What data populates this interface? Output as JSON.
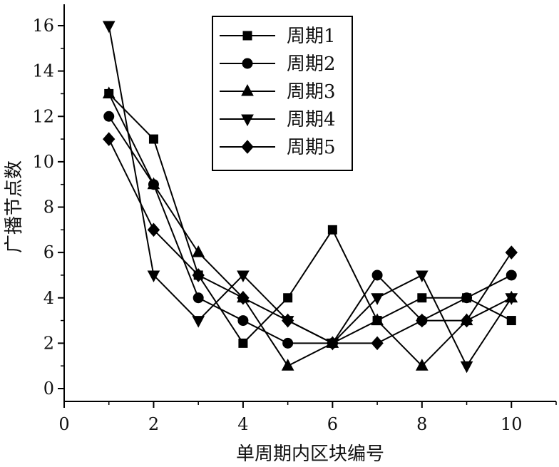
{
  "chart_data": {
    "type": "line",
    "xlabel": "单周期内区块编号",
    "ylabel": "广播节点数",
    "xlim": [
      0,
      11
    ],
    "ylim": [
      0,
      17
    ],
    "xticks": [
      0,
      2,
      4,
      6,
      8,
      10
    ],
    "yticks": [
      0,
      2,
      4,
      6,
      8,
      10,
      12,
      14,
      16
    ],
    "x": [
      1,
      2,
      3,
      4,
      5,
      6,
      7,
      8,
      9,
      10
    ],
    "grid": false,
    "legend_position": "top-center",
    "series": [
      {
        "name": "周期1",
        "marker": "square",
        "values": [
          13,
          11,
          5,
          2,
          4,
          7,
          3,
          4,
          4,
          3
        ]
      },
      {
        "name": "周期2",
        "marker": "circle",
        "values": [
          12,
          9,
          4,
          3,
          2,
          2,
          5,
          3,
          4,
          5
        ]
      },
      {
        "name": "周期3",
        "marker": "triangle-up",
        "values": [
          13,
          9,
          6,
          4,
          1,
          2,
          3,
          1,
          3,
          4
        ]
      },
      {
        "name": "周期4",
        "marker": "triangle-down",
        "values": [
          16,
          5,
          3,
          5,
          3,
          2,
          4,
          5,
          1,
          4
        ]
      },
      {
        "name": "周期5",
        "marker": "diamond",
        "values": [
          11,
          7,
          5,
          4,
          3,
          2,
          2,
          3,
          3,
          6
        ]
      }
    ],
    "line_color": "#000000"
  }
}
